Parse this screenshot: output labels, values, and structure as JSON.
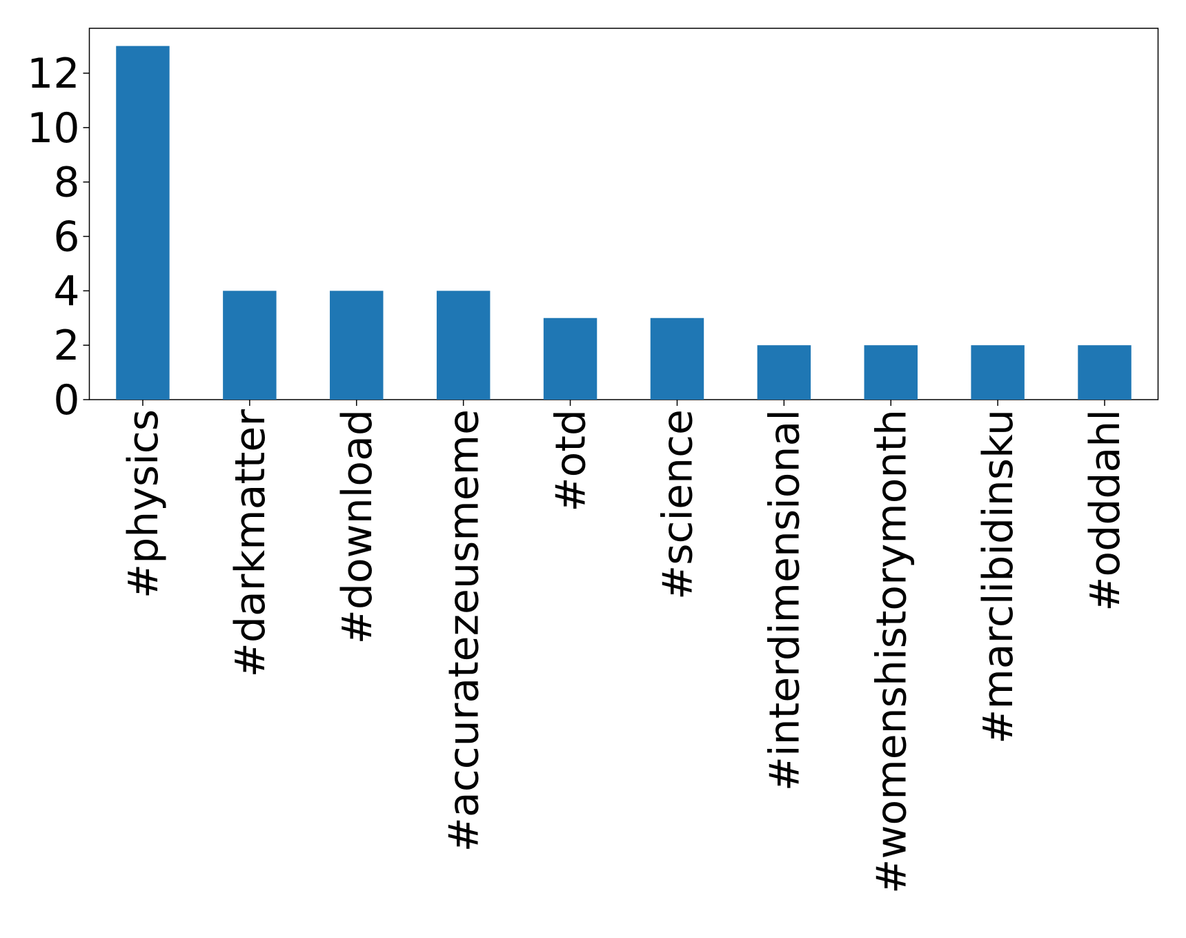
{
  "chart_data": {
    "type": "bar",
    "categories": [
      "#physics",
      "#darkmatter",
      "#download",
      "#accuratezeusmeme",
      "#otd",
      "#science",
      "#interdimensional",
      "#womenshistorymonth",
      "#marclibidinsku",
      "#odddahl"
    ],
    "values": [
      13,
      4,
      4,
      4,
      3,
      3,
      2,
      2,
      2,
      2
    ],
    "color": "#1f77b4",
    "ylim": [
      0,
      13.65
    ],
    "yticks": [
      0,
      2,
      4,
      6,
      8,
      10,
      12
    ],
    "grid": false
  }
}
